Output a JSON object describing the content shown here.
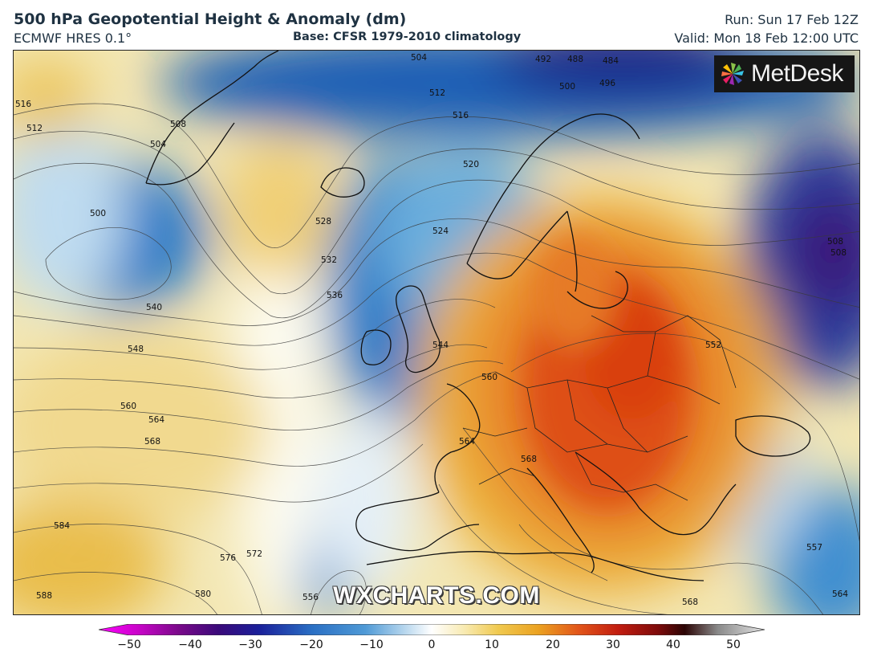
{
  "header": {
    "title": "500 hPa Geopotential Height & Anomaly (dm)",
    "model": "ECMWF HRES 0.1°",
    "base": "Base: CFSR 1979-2010 climatology",
    "run": "Run: Sun 17 Feb 12Z",
    "valid": "Valid: Mon 18 Feb 12:00 UTC"
  },
  "logo": {
    "text": "MetDesk",
    "icon": "metdesk-pinwheel-icon"
  },
  "watermark": "WXCHARTS.COM",
  "colorbar": {
    "min": -50,
    "max": 50,
    "tick_labels": [
      "−50",
      "−40",
      "−30",
      "−20",
      "−10",
      "0",
      "10",
      "20",
      "30",
      "40",
      "50"
    ],
    "tick_values": [
      -50,
      -40,
      -30,
      -20,
      -10,
      0,
      10,
      20,
      30,
      40,
      50
    ],
    "colors": [
      "#ff00ff",
      "#9d0aa8",
      "#3a0a7a",
      "#1a1f9a",
      "#2a6fc4",
      "#8fc1e3",
      "#ffffff",
      "#f6e29a",
      "#efb224",
      "#e2561a",
      "#a10f0f",
      "#2b0505",
      "#d8d8d8"
    ]
  },
  "contour_labels": [
    "484",
    "488",
    "492",
    "496",
    "500",
    "500",
    "504",
    "504",
    "508",
    "508",
    "512",
    "512",
    "516",
    "516",
    "520",
    "524",
    "528",
    "532",
    "536",
    "540",
    "544",
    "548",
    "552",
    "556",
    "557",
    "560",
    "560",
    "564",
    "564",
    "564",
    "568",
    "568",
    "568",
    "572",
    "576",
    "580",
    "584",
    "588",
    "508"
  ]
}
